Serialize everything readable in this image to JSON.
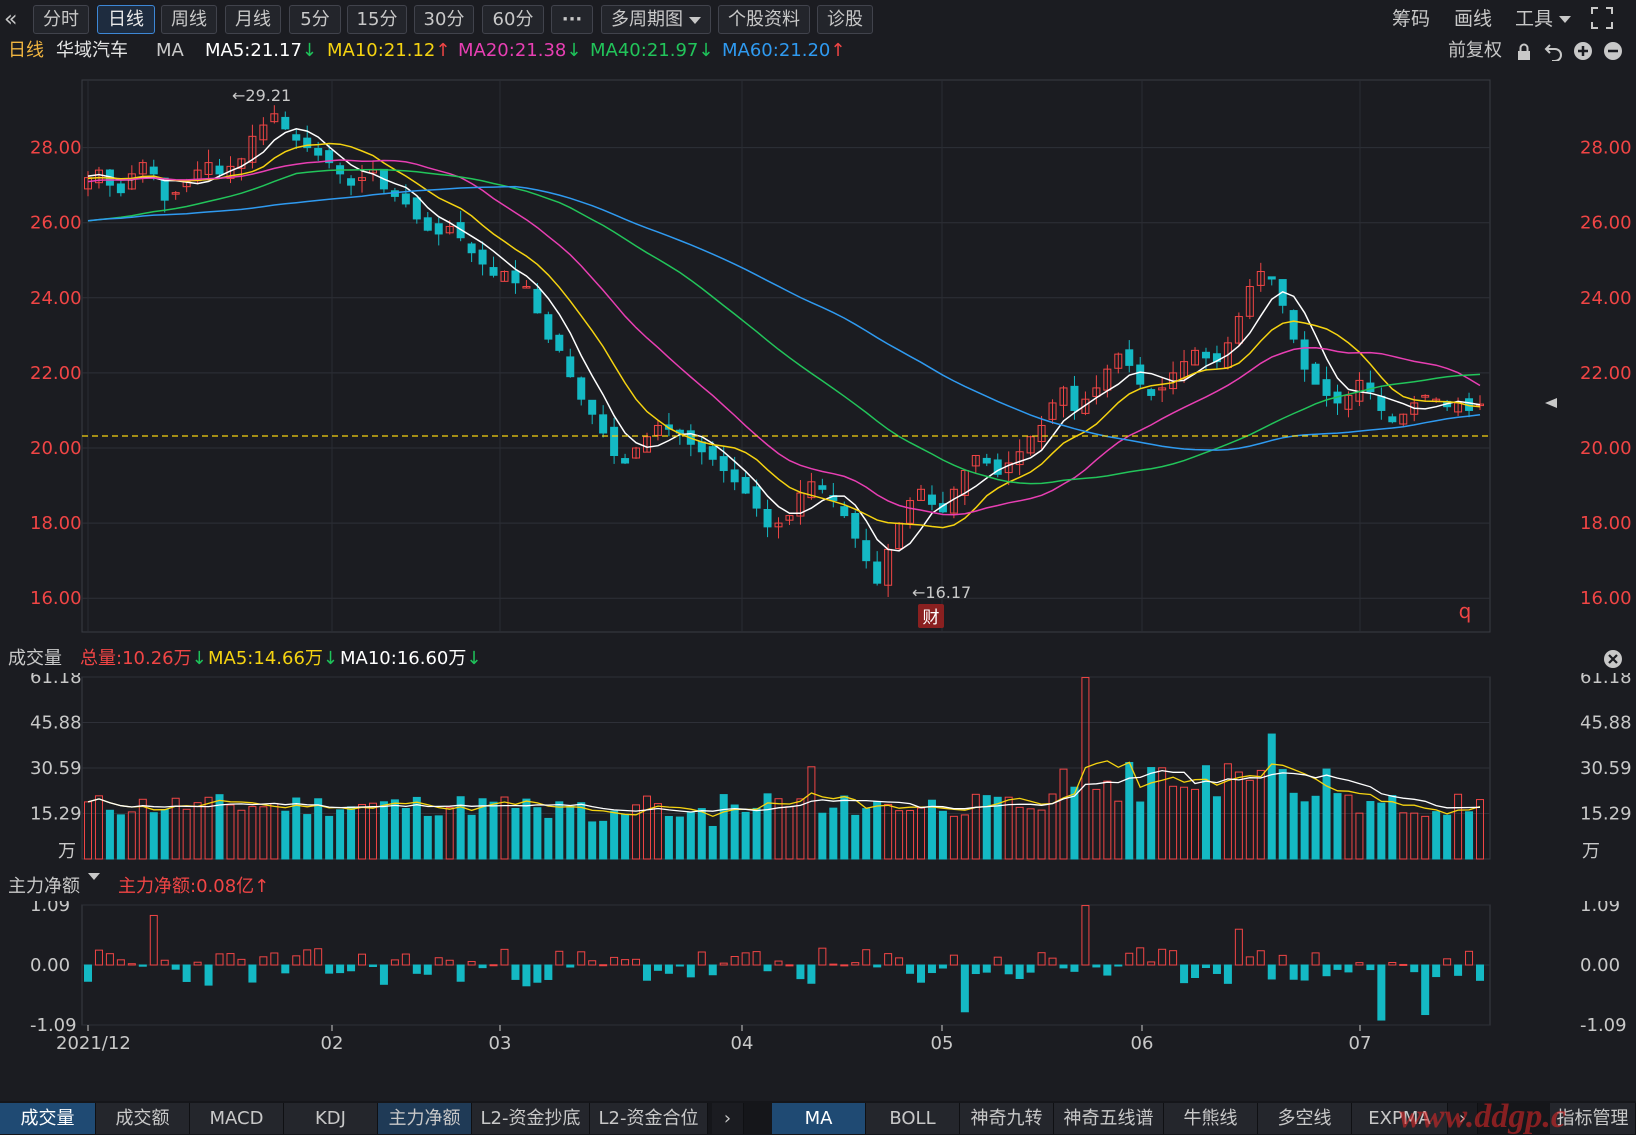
{
  "toolbar": {
    "back_icon": "double-chevron-left-icon",
    "tabs": [
      "分时",
      "日线",
      "周线",
      "月线",
      "5分",
      "15分",
      "30分",
      "60分",
      "···",
      "多周期图",
      "个股资料",
      "诊股"
    ],
    "active_tab": "日线",
    "right": [
      "筹码",
      "画线",
      "工具"
    ],
    "fullscreen_icon": "fullscreen-icon"
  },
  "price_legend": {
    "period": "日线",
    "stock": "华域汽车",
    "indicator": "MA",
    "ma5": "MA5:21.17",
    "ma10": "MA10:21.12",
    "ma20": "MA20:21.38",
    "ma40": "MA40:21.97",
    "ma60": "MA60:21.20",
    "adjust": "前复权",
    "colors": {
      "ma5": "#ffffff",
      "ma10": "#f5d311",
      "ma20": "#e83fb3",
      "ma40": "#22c45a",
      "ma60": "#2f9af0",
      "up": "#f04545",
      "down": "#14b9c4"
    }
  },
  "volume_legend": {
    "title": "成交量",
    "total": "总量:10.26万",
    "ma5": "MA5:14.66万",
    "ma10": "MA10:16.60万"
  },
  "flow_legend": {
    "title": "主力净额",
    "value": "主力净额:0.08亿"
  },
  "chart_data": [
    {
      "type": "candlestick",
      "title": "华域汽车 日线",
      "y_ticks": [
        "28.00",
        "26.00",
        "24.00",
        "22.00",
        "20.00",
        "18.00",
        "16.00"
      ],
      "ylim": [
        15.1,
        29.8
      ],
      "x_ticks": [
        "2021/12",
        "02",
        "03",
        "04",
        "05",
        "06",
        "07"
      ],
      "annotations": {
        "high": "29.21",
        "low": "16.17",
        "marker": "财",
        "q_label": "q"
      },
      "current_price": 20.32,
      "approx_close_series": [
        27.2,
        27.4,
        27.0,
        26.8,
        27.3,
        27.6,
        27.3,
        26.6,
        26.8,
        27.1,
        27.4,
        27.6,
        27.3,
        27.5,
        27.7,
        28.3,
        28.6,
        28.9,
        28.5,
        28.2,
        28.0,
        27.8,
        27.6,
        27.3,
        27.0,
        27.2,
        27.4,
        26.9,
        26.7,
        26.5,
        26.1,
        25.8,
        25.7,
        25.9,
        25.6,
        25.2,
        24.9,
        24.6,
        24.7,
        24.4,
        24.3,
        23.6,
        22.9,
        22.6,
        21.9,
        21.3,
        20.9,
        20.4,
        19.8,
        19.6,
        20.0,
        20.3,
        20.6,
        20.5,
        20.4,
        20.1,
        19.9,
        19.7,
        19.4,
        19.1,
        18.8,
        18.4,
        17.9,
        18.0,
        18.2,
        18.8,
        19.1,
        18.9,
        18.6,
        18.2,
        17.6,
        17.0,
        16.4,
        17.3,
        18.0,
        18.6,
        18.9,
        18.5,
        18.3,
        18.9,
        19.4,
        19.8,
        19.6,
        19.3,
        19.6,
        19.9,
        20.3,
        20.6,
        21.2,
        21.6,
        21.0,
        21.3,
        21.6,
        22.1,
        22.5,
        22.2,
        21.7,
        21.4,
        21.6,
        22.0,
        22.3,
        22.6,
        22.4,
        22.3,
        22.8,
        23.5,
        24.3,
        24.7,
        24.5,
        23.8,
        22.9,
        22.1,
        21.7,
        21.4,
        21.2,
        21.4,
        21.8,
        21.5,
        21.0,
        20.7,
        20.9,
        21.2,
        21.4,
        21.3,
        21.1,
        21.2,
        21.0,
        21.17
      ]
    },
    {
      "type": "bar",
      "title": "成交量",
      "y_ticks": [
        "61.18",
        "45.88",
        "30.59",
        "15.29"
      ],
      "unit": "万",
      "ylim": [
        0,
        61.18
      ]
    },
    {
      "type": "bar",
      "title": "主力净额",
      "y_ticks": [
        "1.09",
        "0.00",
        "-1.09"
      ],
      "ylim": [
        -1.09,
        1.09
      ]
    }
  ],
  "bottom_tabs": {
    "left": [
      "成交量",
      "成交额",
      "MACD",
      "KDJ",
      "主力净额",
      "L2-资金抄底",
      "L2-资金合位"
    ],
    "right": [
      "MA",
      "BOLL",
      "神奇九转",
      "神奇五线谱",
      "牛熊线",
      "多空线",
      "EXPMA",
      "指标管理"
    ],
    "active_left": "成交量",
    "active_right": "MA",
    "next_icon": "chevron-right-icon"
  },
  "watermark": "www.ddgp.c"
}
